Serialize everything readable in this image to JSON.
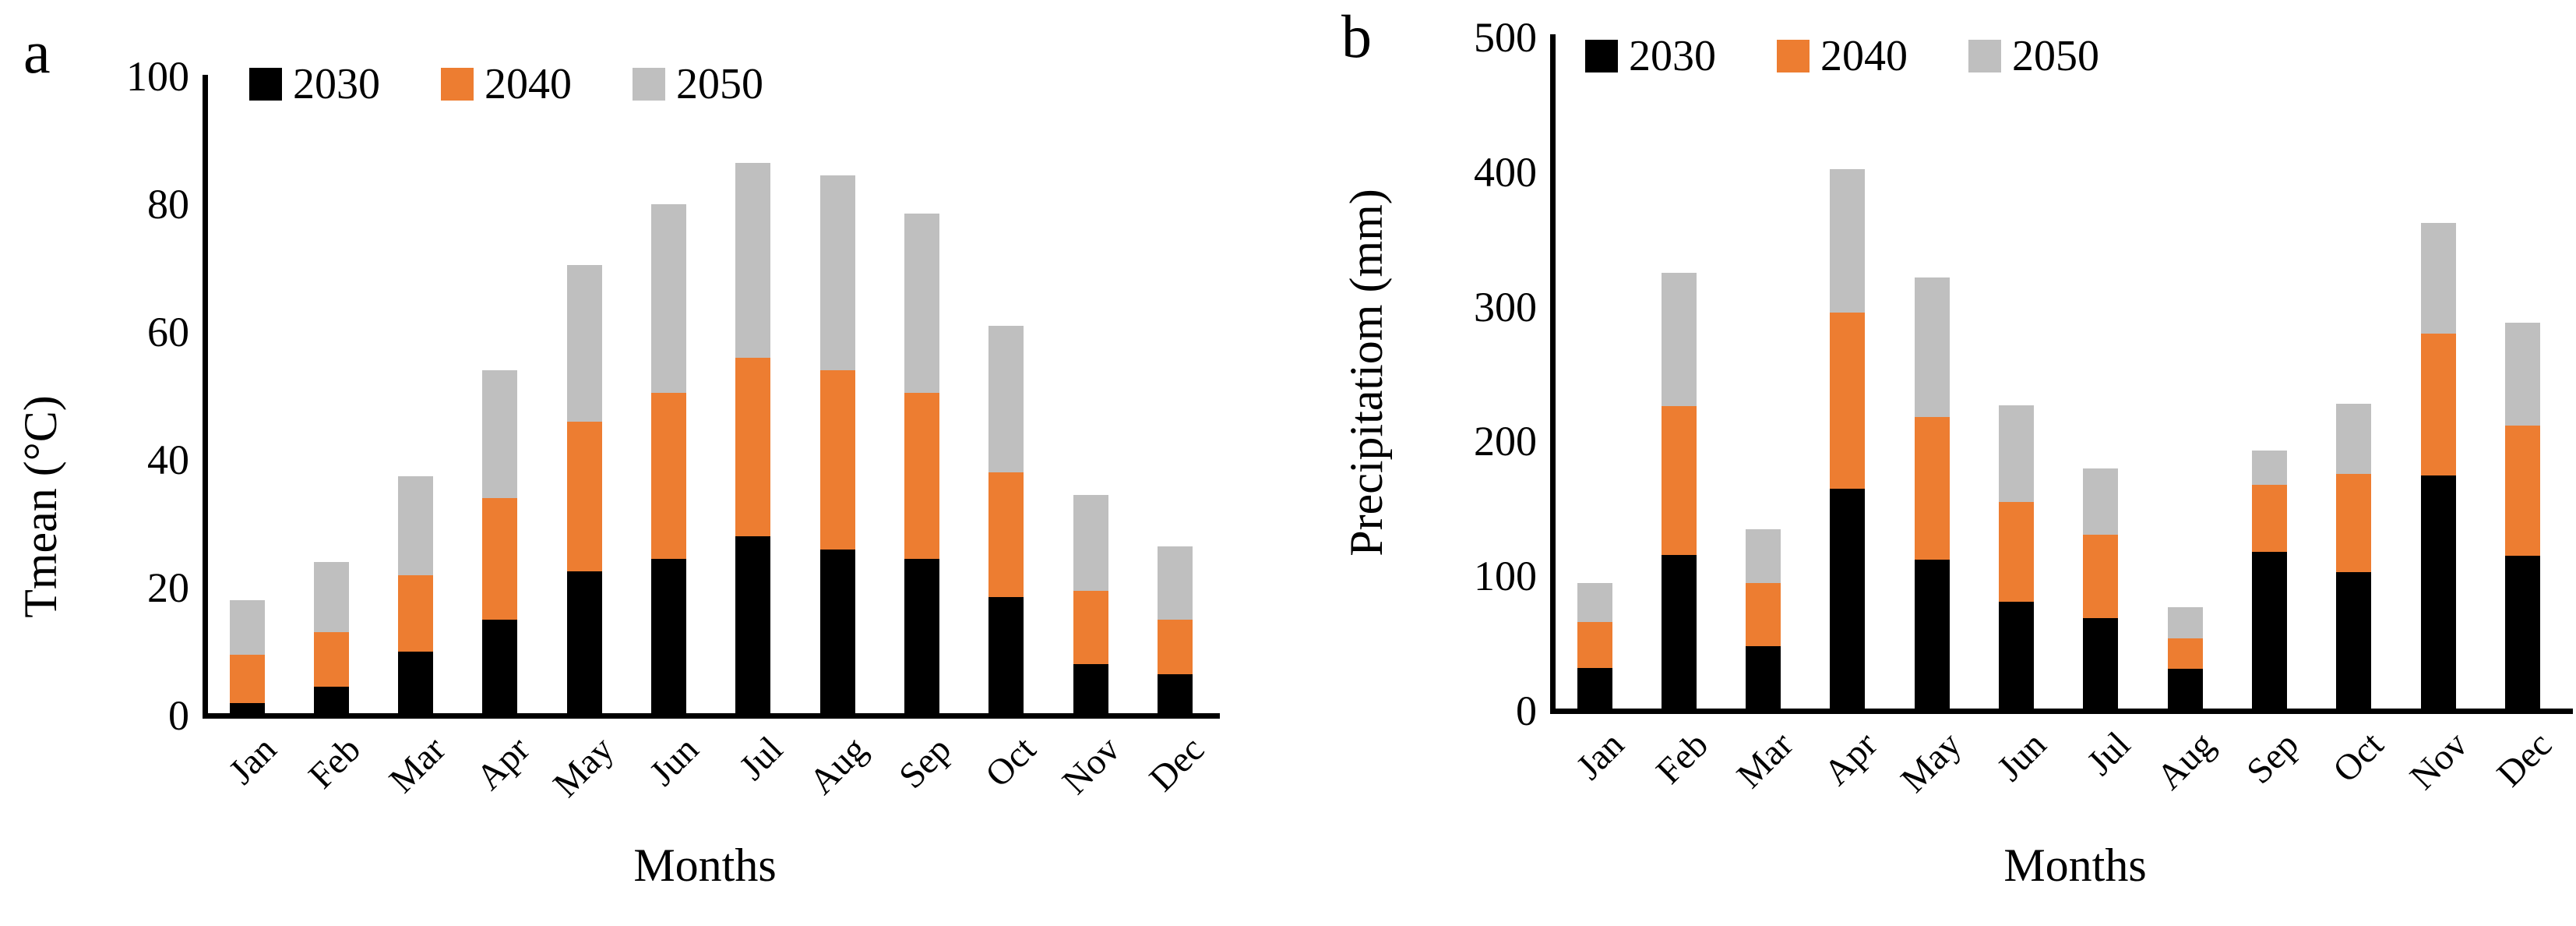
{
  "figure": {
    "background": "#ffffff",
    "axis_color": "#000000"
  },
  "charts": [
    {
      "panel_letter": "a",
      "y_axis_title": "Tmean (°C)",
      "x_axis_title": "Months",
      "legend": [
        {
          "label": "2030",
          "color": "#000000"
        },
        {
          "label": "2040",
          "color": "#ED7D31"
        },
        {
          "label": "2050",
          "color": "#BFBFBF"
        }
      ],
      "chart_data": {
        "type": "bar",
        "stacked": true,
        "title": "",
        "xlabel": "Months",
        "ylabel": "Tmean (°C)",
        "ylim": [
          0,
          100
        ],
        "yticks": [
          0,
          20,
          40,
          60,
          80,
          100
        ],
        "grid": false,
        "legend_position": "top-left",
        "categories": [
          "Jan",
          "Feb",
          "Mar",
          "Apr",
          "May",
          "Jun",
          "Jul",
          "Aug",
          "Sep",
          "Oct",
          "Nov",
          "Dec"
        ],
        "series": [
          {
            "name": "2030",
            "color": "#000000",
            "values": [
              2,
              4.5,
              10,
              15,
              22.5,
              24.5,
              28,
              26,
              24.5,
              18.5,
              8,
              6.5
            ]
          },
          {
            "name": "2040",
            "color": "#ED7D31",
            "values": [
              7.5,
              8.5,
              12,
              19,
              23.5,
              26,
              28,
              28,
              26,
              19.5,
              11.5,
              8.5
            ]
          },
          {
            "name": "2050",
            "color": "#BFBFBF",
            "values": [
              8.5,
              11,
              15.5,
              20,
              24.5,
              29.5,
              30.5,
              30.5,
              28,
              23,
              15,
              11.5
            ]
          }
        ],
        "stacked_totals": [
          18,
          24,
          37.5,
          54,
          70.5,
          80,
          86.5,
          84.5,
          78.5,
          61,
          34.5,
          26.5
        ]
      }
    },
    {
      "panel_letter": "b",
      "y_axis_title": "Precipitatiom (mm)",
      "x_axis_title": "Months",
      "legend": [
        {
          "label": "2030",
          "color": "#000000"
        },
        {
          "label": "2040",
          "color": "#ED7D31"
        },
        {
          "label": "2050",
          "color": "#BFBFBF"
        }
      ],
      "chart_data": {
        "type": "bar",
        "stacked": true,
        "title": "",
        "xlabel": "Months",
        "ylabel": "Precipitatiom (mm)",
        "ylim": [
          0,
          500
        ],
        "yticks": [
          0,
          100,
          200,
          300,
          400,
          500
        ],
        "grid": false,
        "legend_position": "top-left",
        "categories": [
          "Jan",
          "Feb",
          "Mar",
          "Apr",
          "May",
          "Jun",
          "Jul",
          "Aug",
          "Sep",
          "Oct",
          "Nov",
          "Dec"
        ],
        "series": [
          {
            "name": "2030",
            "color": "#000000",
            "values": [
              32,
              116,
              48,
              165,
              112,
              81,
              69,
              31,
              118,
              103,
              175,
              115
            ]
          },
          {
            "name": "2040",
            "color": "#ED7D31",
            "values": [
              34,
              110,
              47,
              131,
              106,
              74,
              62,
              23,
              50,
              73,
              105,
              97
            ]
          },
          {
            "name": "2050",
            "color": "#BFBFBF",
            "values": [
              29,
              99,
              40,
              106,
              104,
              72,
              49,
              23,
              25,
              52,
              82,
              76
            ]
          }
        ],
        "stacked_totals": [
          95,
          325,
          135,
          402,
          322,
          227,
          180,
          77,
          193,
          228,
          362,
          288
        ]
      }
    }
  ]
}
